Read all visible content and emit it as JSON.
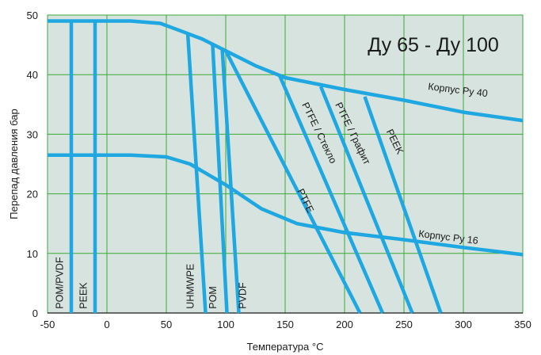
{
  "chart_data": {
    "type": "line",
    "title": "Ду 65 - Ду 100",
    "xlabel": "Температура °C",
    "ylabel": "Перепад давления бар",
    "xlim": [
      -50,
      350
    ],
    "ylim": [
      0,
      50
    ],
    "xticks": [
      -50,
      0,
      50,
      100,
      150,
      200,
      250,
      300,
      350
    ],
    "yticks": [
      0,
      10,
      20,
      30,
      40,
      50
    ],
    "grid": true,
    "colors": {
      "background": "#d6e3de",
      "grid": "#3aaa35",
      "line": "#1ea7e1",
      "text": "#1a1a1a"
    },
    "series": [
      {
        "name": "Корпус Ру 40",
        "x": [
          -50,
          -15,
          20,
          45,
          60,
          80,
          100,
          125,
          150,
          200,
          250,
          300,
          350
        ],
        "y": [
          49,
          49,
          49,
          48.6,
          47.5,
          46,
          44,
          41.5,
          39.5,
          37.5,
          35.7,
          33.7,
          32.3
        ]
      },
      {
        "name": "Корпус Ру 16",
        "x": [
          -50,
          -15,
          20,
          50,
          70,
          100,
          130,
          160,
          200,
          250,
          300,
          350
        ],
        "y": [
          26.5,
          26.5,
          26.5,
          26.2,
          25,
          21.5,
          17.5,
          15,
          13.5,
          12.3,
          11,
          9.8
        ]
      },
      {
        "name": "POM/PVDF",
        "x": [
          -30,
          -30
        ],
        "y": [
          49,
          0
        ]
      },
      {
        "name": "PEEK",
        "x": [
          -10,
          -10
        ],
        "y": [
          49,
          0
        ]
      },
      {
        "name": "UHMWPE",
        "x": [
          68,
          83
        ],
        "y": [
          47,
          0
        ]
      },
      {
        "name": "POM",
        "x": [
          89,
          101
        ],
        "y": [
          45,
          0
        ]
      },
      {
        "name": "PVDF",
        "x": [
          97,
          111
        ],
        "y": [
          44.5,
          0
        ]
      },
      {
        "name": "PTFE",
        "x": [
          100,
          213
        ],
        "y": [
          44,
          0
        ]
      },
      {
        "name": "PTFE / Стекло",
        "x": [
          145,
          232
        ],
        "y": [
          40,
          0
        ]
      },
      {
        "name": "PTFE / Графит",
        "x": [
          180,
          257
        ],
        "y": [
          38,
          0
        ]
      },
      {
        "name": "PEEK",
        "x": [
          217,
          281
        ],
        "y": [
          36.3,
          0
        ]
      }
    ],
    "annotations": [
      {
        "text": "Корпус Ру 40",
        "x": 270,
        "y": 37.5,
        "angle": 7
      },
      {
        "text": "Корпус Ру 16",
        "x": 262,
        "y": 12.8,
        "angle": 7
      },
      {
        "text": "POM/PVDF",
        "x": -37,
        "y": 0.7,
        "angle": -90
      },
      {
        "text": "PEEK",
        "x": -17,
        "y": 0.7,
        "angle": -90
      },
      {
        "text": "UHMWPE",
        "x": 73,
        "y": 0.7,
        "angle": -90
      },
      {
        "text": "POM",
        "x": 92,
        "y": 0.7,
        "angle": -90
      },
      {
        "text": "PVDF",
        "x": 117,
        "y": 0.7,
        "angle": -90
      },
      {
        "text": "PTFE",
        "x": 160,
        "y": 20.5,
        "angle": 64
      },
      {
        "text": "PTFE / Стекло",
        "x": 164,
        "y": 35,
        "angle": 64
      },
      {
        "text": "PTFE / Графит",
        "x": 192,
        "y": 35,
        "angle": 64
      },
      {
        "text": "PEEK",
        "x": 235,
        "y": 30.5,
        "angle": 64
      }
    ]
  }
}
